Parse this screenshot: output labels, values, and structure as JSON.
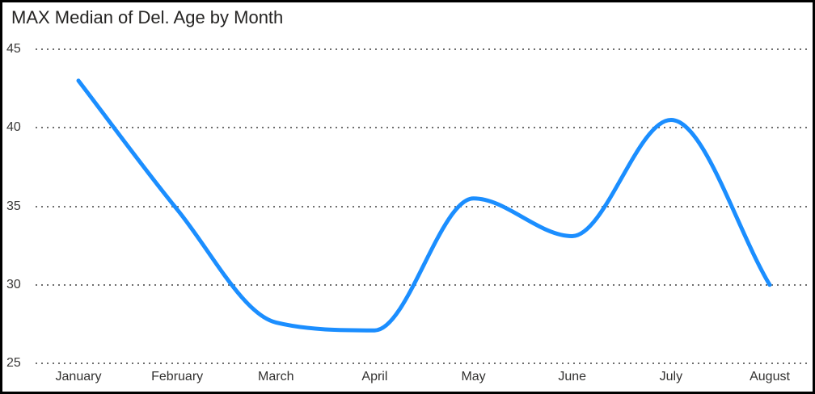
{
  "chart_data": {
    "type": "line",
    "title": "MAX Median of Del. Age by Month",
    "categories": [
      "January",
      "February",
      "March",
      "April",
      "May",
      "June",
      "July",
      "August"
    ],
    "values": [
      43,
      34.8,
      27.6,
      27.1,
      35.5,
      33.1,
      40.5,
      30
    ],
    "xlabel": "",
    "ylabel": "",
    "ylim": [
      25,
      45
    ],
    "yticks": [
      45,
      40,
      35,
      30,
      25
    ],
    "grid": "horizontal-dotted",
    "legend": "none",
    "smooth": true,
    "line_color": "#1b8eff",
    "gridline_color": "#6e6e6e",
    "title_color": "#252423",
    "axis_label_color": "#3a3938",
    "background_color": "#ffffff",
    "border_color": "#000000"
  }
}
